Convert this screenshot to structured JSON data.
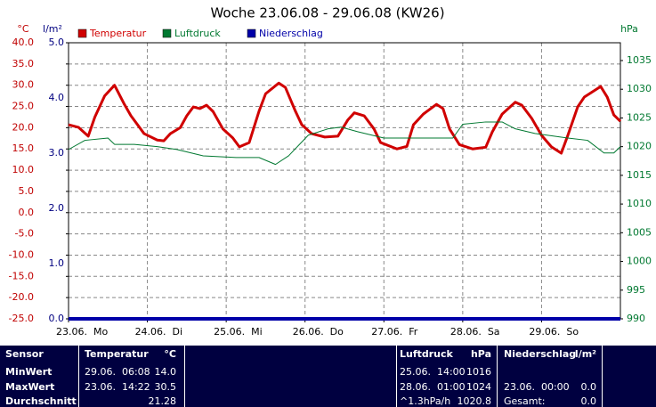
{
  "chart_data": {
    "type": "line",
    "title": "Woche 23.06.08 - 29.06.08 (KW26)",
    "y_unit": "°C",
    "y3_unit": "l/m²",
    "y2_unit": "hPa",
    "xlim": [
      0,
      168
    ],
    "xticks": [
      {
        "value": 0,
        "label": "23.06.  Mo"
      },
      {
        "value": 24,
        "label": "24.06.  Di"
      },
      {
        "value": 48,
        "label": "25.06.  Mi"
      },
      {
        "value": 72,
        "label": "26.06.  Do"
      },
      {
        "value": 96,
        "label": "27.06.  Fr"
      },
      {
        "value": 120,
        "label": "28.06.  Sa"
      },
      {
        "value": 144,
        "label": "29.06.  So"
      }
    ],
    "ylim": [
      -25,
      40
    ],
    "yticks": [
      {
        "value": -25,
        "label": "-25.0"
      },
      {
        "value": -20,
        "label": "-20.0"
      },
      {
        "value": -15,
        "label": "-15.0"
      },
      {
        "value": -10,
        "label": "-10.0"
      },
      {
        "value": -5,
        "label": "-5.0"
      },
      {
        "value": 0,
        "label": "0.0"
      },
      {
        "value": 5,
        "label": "5.0"
      },
      {
        "value": 10,
        "label": "10.0"
      },
      {
        "value": 15,
        "label": "15.0"
      },
      {
        "value": 20,
        "label": "20.0"
      },
      {
        "value": 25,
        "label": "25.0"
      },
      {
        "value": 30,
        "label": "30.0"
      },
      {
        "value": 35,
        "label": "35.0"
      },
      {
        "value": 40,
        "label": "40.0"
      }
    ],
    "y3lim": [
      0,
      5
    ],
    "y3ticks": [
      {
        "value": 0,
        "label": "0.0"
      },
      {
        "value": 1,
        "label": "1.0"
      },
      {
        "value": 2,
        "label": "2.0"
      },
      {
        "value": 3,
        "label": "3.0"
      },
      {
        "value": 4,
        "label": "4.0"
      },
      {
        "value": 5,
        "label": "5.0"
      }
    ],
    "y2lim": [
      990,
      1038.1
    ],
    "y2ticks": [
      990,
      995,
      1000,
      1005,
      1010,
      1015,
      1020,
      1025,
      1030,
      1035
    ],
    "grid": true,
    "series": [
      {
        "name": "Temperatur",
        "color": "#d00000",
        "axis": "y",
        "x": [
          0,
          3,
          6,
          8,
          11,
          14,
          17,
          19,
          23,
          27,
          29,
          31,
          34,
          36,
          38,
          40,
          42,
          44,
          47,
          50,
          52,
          55,
          58,
          60,
          64,
          66,
          69,
          71,
          74,
          78,
          82,
          85,
          87,
          90,
          93,
          95,
          100,
          103,
          105,
          108,
          112,
          114,
          116,
          119,
          123,
          127,
          129,
          132,
          136,
          138,
          141,
          144,
          147,
          150,
          152,
          155,
          157,
          162,
          164,
          166,
          168
        ],
        "values": [
          20.7,
          20.1,
          18.0,
          22.5,
          27.5,
          30.0,
          25.5,
          22.8,
          18.6,
          17.1,
          16.9,
          18.6,
          20.0,
          22.8,
          24.9,
          24.5,
          25.3,
          23.8,
          19.7,
          17.6,
          15.5,
          16.5,
          23.9,
          28.0,
          30.5,
          29.5,
          24.0,
          20.7,
          18.6,
          17.8,
          18.0,
          21.8,
          23.5,
          22.8,
          19.7,
          16.5,
          15.0,
          15.6,
          20.7,
          23.2,
          25.5,
          24.5,
          19.7,
          16.0,
          15.0,
          15.4,
          19.0,
          23.2,
          26.0,
          25.3,
          22.2,
          18.2,
          15.5,
          14.0,
          18.2,
          24.9,
          27.2,
          29.7,
          27.2,
          23.0,
          21.5
        ]
      },
      {
        "name": "Luftdruck",
        "color": "#007830",
        "axis": "y2",
        "x": [
          0,
          5,
          12,
          14,
          20,
          27,
          33,
          41,
          51,
          58,
          63,
          67,
          73,
          79,
          83,
          88,
          96,
          100,
          109,
          117,
          120,
          127,
          132,
          136,
          142,
          152,
          158,
          163,
          166,
          168
        ],
        "values": [
          1019.5,
          1021.1,
          1021.5,
          1020.4,
          1020.4,
          1020.0,
          1019.5,
          1018.4,
          1018.1,
          1018.1,
          1016.9,
          1018.4,
          1022.0,
          1023.1,
          1023.4,
          1022.6,
          1021.5,
          1021.5,
          1021.5,
          1021.5,
          1023.9,
          1024.3,
          1024.3,
          1023.1,
          1022.3,
          1021.5,
          1021.1,
          1018.9,
          1018.9,
          1020.0
        ]
      },
      {
        "name": "Niederschlag",
        "color": "#0000a8",
        "axis": "y3",
        "x": [
          0,
          168
        ],
        "values": [
          0,
          0
        ]
      }
    ]
  },
  "table": {
    "header": [
      "Sensor",
      "Temperatur",
      "°C",
      "Luftdruck",
      "hPa",
      "Niederschlag",
      "l/m²"
    ],
    "rows": [
      {
        "label": "MinWert",
        "temperature": {
          "time": "29.06.  06:08",
          "value": "14.0"
        },
        "pressure": {
          "time": "25.06.  14:00",
          "value": "1016"
        }
      },
      {
        "label": "MaxWert",
        "temperature": {
          "time": "23.06.  14:22",
          "value": "30.5"
        },
        "pressure": {
          "time": "28.06.  01:00",
          "value": "1024"
        },
        "precipitation": {
          "time": "23.06.  00:00",
          "value": "0.0"
        }
      },
      {
        "label": "Durchschnitt",
        "temperature": {
          "value": "21.28"
        },
        "pressure": {
          "time": "^1.3hPa/h",
          "value": "1020.8"
        },
        "precipitation": {
          "time": "Gesamt:",
          "value": "0.0"
        }
      }
    ]
  }
}
